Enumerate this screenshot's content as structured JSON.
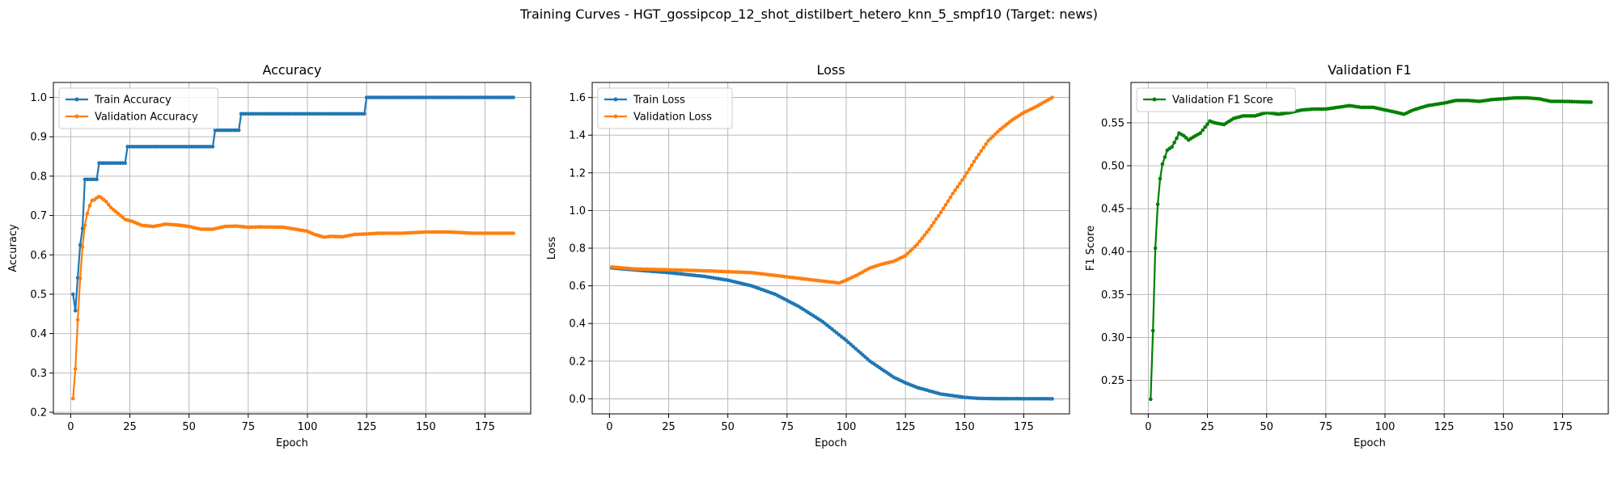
{
  "figure": {
    "title": "Training Curves - HGT_gossipcop_12_shot_distilbert_hetero_knn_5_smpf10 (Target: news)",
    "colors": {
      "blue": "#1f77b4",
      "orange": "#ff7f0e",
      "green": "#008000",
      "grid": "#b0b0b0"
    }
  },
  "chart_data": [
    {
      "type": "line",
      "title": "Accuracy",
      "xlabel": "Epoch",
      "ylabel": "Accuracy",
      "xlim": [
        -7.3,
        194.3
      ],
      "ylim": [
        0.196,
        1.038
      ],
      "xticks": [
        0,
        25,
        50,
        75,
        100,
        125,
        150,
        175
      ],
      "yticks": [
        0.2,
        0.3,
        0.4,
        0.5,
        0.6,
        0.7,
        0.8,
        0.9,
        1.0
      ],
      "ytick_decimals": 1,
      "grid": true,
      "legend": "upper left",
      "series": [
        {
          "name": "Train Accuracy",
          "color": "#1f77b4",
          "marker": "point",
          "kind": "step",
          "steps": [
            [
              1,
              0.5
            ],
            [
              2,
              0.4583
            ],
            [
              3,
              0.5417
            ],
            [
              4,
              0.625
            ],
            [
              5,
              0.6667
            ],
            [
              6,
              0.7917
            ],
            [
              12,
              0.8333
            ],
            [
              24,
              0.875
            ],
            [
              61,
              0.9167
            ],
            [
              72,
              0.9583
            ],
            [
              125,
              1.0
            ]
          ],
          "x_end": 187
        },
        {
          "name": "Validation Accuracy",
          "color": "#ff7f0e",
          "marker": "point",
          "kind": "interp",
          "knots": [
            [
              1,
              0.235
            ],
            [
              2,
              0.31
            ],
            [
              3,
              0.435
            ],
            [
              4,
              0.54
            ],
            [
              5,
              0.62
            ],
            [
              6,
              0.675
            ],
            [
              7,
              0.705
            ],
            [
              8,
              0.725
            ],
            [
              9,
              0.738
            ],
            [
              10,
              0.74
            ],
            [
              11,
              0.745
            ],
            [
              12,
              0.748
            ],
            [
              13,
              0.745
            ],
            [
              15,
              0.735
            ],
            [
              17,
              0.72
            ],
            [
              20,
              0.705
            ],
            [
              23,
              0.69
            ],
            [
              26,
              0.685
            ],
            [
              30,
              0.675
            ],
            [
              35,
              0.672
            ],
            [
              40,
              0.678
            ],
            [
              45,
              0.676
            ],
            [
              50,
              0.672
            ],
            [
              55,
              0.665
            ],
            [
              60,
              0.665
            ],
            [
              65,
              0.672
            ],
            [
              70,
              0.673
            ],
            [
              75,
              0.67
            ],
            [
              80,
              0.671
            ],
            [
              90,
              0.67
            ],
            [
              95,
              0.665
            ],
            [
              100,
              0.66
            ],
            [
              103,
              0.652
            ],
            [
              107,
              0.645
            ],
            [
              110,
              0.647
            ],
            [
              115,
              0.646
            ],
            [
              120,
              0.652
            ],
            [
              125,
              0.653
            ],
            [
              130,
              0.655
            ],
            [
              140,
              0.655
            ],
            [
              150,
              0.658
            ],
            [
              160,
              0.658
            ],
            [
              170,
              0.655
            ],
            [
              187,
              0.655
            ]
          ],
          "x_end": 187
        }
      ]
    },
    {
      "type": "line",
      "title": "Loss",
      "xlabel": "Epoch",
      "ylabel": "Loss",
      "xlim": [
        -7.3,
        194.3
      ],
      "ylim": [
        -0.08,
        1.68
      ],
      "xticks": [
        0,
        25,
        50,
        75,
        100,
        125,
        150,
        175
      ],
      "yticks": [
        0.0,
        0.2,
        0.4,
        0.6,
        0.8,
        1.0,
        1.2,
        1.4,
        1.6
      ],
      "ytick_decimals": 1,
      "grid": true,
      "legend": "upper left",
      "series": [
        {
          "name": "Train Loss",
          "color": "#1f77b4",
          "marker": "point",
          "kind": "interp",
          "knots": [
            [
              1,
              0.695
            ],
            [
              10,
              0.685
            ],
            [
              25,
              0.67
            ],
            [
              40,
              0.65
            ],
            [
              50,
              0.63
            ],
            [
              60,
              0.6
            ],
            [
              70,
              0.555
            ],
            [
              80,
              0.49
            ],
            [
              90,
              0.41
            ],
            [
              100,
              0.31
            ],
            [
              110,
              0.2
            ],
            [
              120,
              0.115
            ],
            [
              125,
              0.085
            ],
            [
              130,
              0.06
            ],
            [
              140,
              0.025
            ],
            [
              150,
              0.008
            ],
            [
              155,
              0.003
            ],
            [
              160,
              0.001
            ],
            [
              187,
              0.0
            ]
          ],
          "x_end": 187
        },
        {
          "name": "Validation Loss",
          "color": "#ff7f0e",
          "marker": "point",
          "kind": "interp",
          "knots": [
            [
              1,
              0.7
            ],
            [
              10,
              0.69
            ],
            [
              25,
              0.685
            ],
            [
              40,
              0.68
            ],
            [
              50,
              0.675
            ],
            [
              60,
              0.67
            ],
            [
              70,
              0.655
            ],
            [
              80,
              0.64
            ],
            [
              90,
              0.625
            ],
            [
              97,
              0.615
            ],
            [
              100,
              0.63
            ],
            [
              105,
              0.66
            ],
            [
              110,
              0.695
            ],
            [
              115,
              0.715
            ],
            [
              120,
              0.73
            ],
            [
              125,
              0.76
            ],
            [
              130,
              0.82
            ],
            [
              135,
              0.9
            ],
            [
              140,
              0.99
            ],
            [
              145,
              1.09
            ],
            [
              150,
              1.18
            ],
            [
              155,
              1.28
            ],
            [
              160,
              1.37
            ],
            [
              165,
              1.43
            ],
            [
              170,
              1.48
            ],
            [
              175,
              1.52
            ],
            [
              180,
              1.55
            ],
            [
              187,
              1.6
            ]
          ],
          "x_end": 187
        }
      ]
    },
    {
      "type": "line",
      "title": "Validation F1",
      "xlabel": "Epoch",
      "ylabel": "F1 Score",
      "xlim": [
        -7.3,
        194.3
      ],
      "ylim": [
        0.211,
        0.597
      ],
      "xticks": [
        0,
        25,
        50,
        75,
        100,
        125,
        150,
        175
      ],
      "yticks": [
        0.25,
        0.3,
        0.35,
        0.4,
        0.45,
        0.5,
        0.55
      ],
      "ytick_decimals": 2,
      "grid": true,
      "legend": "upper left",
      "series": [
        {
          "name": "Validation F1 Score",
          "color": "#008000",
          "marker": "point",
          "kind": "interp",
          "knots": [
            [
              1,
              0.228
            ],
            [
              2,
              0.308
            ],
            [
              3,
              0.404
            ],
            [
              4,
              0.455
            ],
            [
              5,
              0.485
            ],
            [
              6,
              0.502
            ],
            [
              7,
              0.51
            ],
            [
              8,
              0.518
            ],
            [
              10,
              0.522
            ],
            [
              12,
              0.532
            ],
            [
              13,
              0.538
            ],
            [
              15,
              0.535
            ],
            [
              17,
              0.53
            ],
            [
              20,
              0.535
            ],
            [
              22,
              0.538
            ],
            [
              24,
              0.545
            ],
            [
              26,
              0.552
            ],
            [
              28,
              0.55
            ],
            [
              32,
              0.548
            ],
            [
              36,
              0.555
            ],
            [
              40,
              0.558
            ],
            [
              45,
              0.558
            ],
            [
              50,
              0.562
            ],
            [
              55,
              0.56
            ],
            [
              60,
              0.562
            ],
            [
              65,
              0.565
            ],
            [
              70,
              0.566
            ],
            [
              75,
              0.566
            ],
            [
              80,
              0.568
            ],
            [
              85,
              0.57
            ],
            [
              90,
              0.568
            ],
            [
              95,
              0.568
            ],
            [
              100,
              0.565
            ],
            [
              105,
              0.562
            ],
            [
              108,
              0.56
            ],
            [
              112,
              0.565
            ],
            [
              118,
              0.57
            ],
            [
              125,
              0.573
            ],
            [
              130,
              0.576
            ],
            [
              135,
              0.576
            ],
            [
              140,
              0.575
            ],
            [
              145,
              0.577
            ],
            [
              150,
              0.578
            ],
            [
              155,
              0.579
            ],
            [
              160,
              0.579
            ],
            [
              165,
              0.578
            ],
            [
              170,
              0.575
            ],
            [
              175,
              0.575
            ],
            [
              187,
              0.574
            ]
          ],
          "x_end": 187
        }
      ]
    }
  ]
}
